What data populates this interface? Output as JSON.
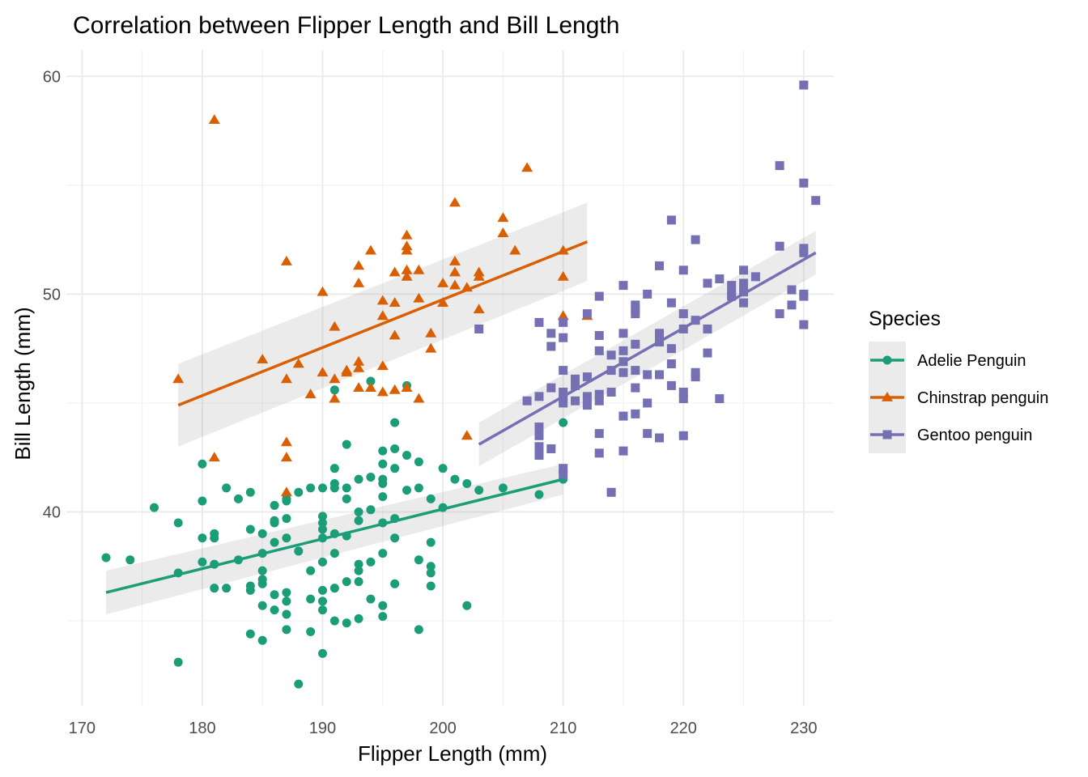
{
  "chart_data": {
    "type": "scatter",
    "title": "Correlation between Flipper Length and Bill Length",
    "xlabel": "Flipper Length (mm)",
    "ylabel": "Bill Length (mm)",
    "xlim": [
      168.7,
      232.5
    ],
    "ylim": [
      31.1,
      61.2
    ],
    "x_ticks": [
      170,
      180,
      190,
      200,
      210,
      220,
      230
    ],
    "y_ticks": [
      40,
      50,
      60
    ],
    "grid": true,
    "legend": {
      "title": "Species",
      "position": "right"
    },
    "series": [
      {
        "name": "Adelie Penguin",
        "color": "#1b9e77",
        "marker": "circle",
        "fit": {
          "x": [
            172,
            210
          ],
          "y": [
            36.3,
            41.5
          ],
          "band": [
            1.0,
            0.7
          ]
        },
        "points": [
          [
            172,
            37.9
          ],
          [
            174,
            37.8
          ],
          [
            176,
            40.2
          ],
          [
            178,
            33.1
          ],
          [
            178,
            37.2
          ],
          [
            178,
            39.5
          ],
          [
            180,
            37.7
          ],
          [
            180,
            38.8
          ],
          [
            180,
            40.5
          ],
          [
            180,
            42.2
          ],
          [
            181,
            37.6
          ],
          [
            181,
            38.8
          ],
          [
            181,
            39.0
          ],
          [
            181,
            36.5
          ],
          [
            182,
            41.1
          ],
          [
            182,
            36.5
          ],
          [
            183,
            37.8
          ],
          [
            183,
            40.6
          ],
          [
            184,
            36.6
          ],
          [
            184,
            36.4
          ],
          [
            184,
            34.4
          ],
          [
            184,
            39.2
          ],
          [
            184,
            40.9
          ],
          [
            185,
            34.1
          ],
          [
            185,
            35.7
          ],
          [
            185,
            36.7
          ],
          [
            185,
            36.9
          ],
          [
            185,
            37.3
          ],
          [
            185,
            38.1
          ],
          [
            185,
            39.0
          ],
          [
            186,
            35.5
          ],
          [
            186,
            36.2
          ],
          [
            186,
            38.6
          ],
          [
            186,
            39.5
          ],
          [
            186,
            39.6
          ],
          [
            186,
            40.3
          ],
          [
            187,
            34.6
          ],
          [
            187,
            35.3
          ],
          [
            187,
            35.9
          ],
          [
            187,
            36.3
          ],
          [
            187,
            38.8
          ],
          [
            187,
            39.7
          ],
          [
            187,
            40.5
          ],
          [
            187,
            40.6
          ],
          [
            188,
            32.1
          ],
          [
            188,
            38.2
          ],
          [
            188,
            40.9
          ],
          [
            189,
            34.5
          ],
          [
            189,
            36.0
          ],
          [
            189,
            37.3
          ],
          [
            189,
            41.1
          ],
          [
            190,
            33.5
          ],
          [
            190,
            35.5
          ],
          [
            190,
            36.4
          ],
          [
            190,
            37.7
          ],
          [
            190,
            38.8
          ],
          [
            190,
            39.2
          ],
          [
            190,
            39.8
          ],
          [
            190,
            41.1
          ],
          [
            190,
            35.9
          ],
          [
            190,
            39.5
          ],
          [
            191,
            35.0
          ],
          [
            191,
            36.5
          ],
          [
            191,
            38.1
          ],
          [
            191,
            39.0
          ],
          [
            191,
            41.1
          ],
          [
            191,
            41.3
          ],
          [
            191,
            42.0
          ],
          [
            191,
            45.6
          ],
          [
            192,
            34.9
          ],
          [
            192,
            36.8
          ],
          [
            192,
            38.9
          ],
          [
            192,
            40.6
          ],
          [
            192,
            43.1
          ],
          [
            192,
            41.1
          ],
          [
            193,
            35.1
          ],
          [
            193,
            36.8
          ],
          [
            193,
            37.6
          ],
          [
            193,
            39.6
          ],
          [
            193,
            40.0
          ],
          [
            193,
            41.5
          ],
          [
            193,
            37.3
          ],
          [
            194,
            36.0
          ],
          [
            194,
            37.7
          ],
          [
            194,
            40.1
          ],
          [
            194,
            41.6
          ],
          [
            194,
            46.0
          ],
          [
            195,
            35.2
          ],
          [
            195,
            35.7
          ],
          [
            195,
            38.1
          ],
          [
            195,
            39.5
          ],
          [
            195,
            40.7
          ],
          [
            195,
            41.3
          ],
          [
            195,
            42.2
          ],
          [
            195,
            42.8
          ],
          [
            195,
            41.5
          ],
          [
            196,
            36.7
          ],
          [
            196,
            38.8
          ],
          [
            196,
            39.7
          ],
          [
            196,
            42.0
          ],
          [
            196,
            42.9
          ],
          [
            196,
            44.1
          ],
          [
            197,
            41.0
          ],
          [
            197,
            42.6
          ],
          [
            197,
            45.8
          ],
          [
            198,
            34.6
          ],
          [
            198,
            37.8
          ],
          [
            198,
            41.1
          ],
          [
            198,
            42.3
          ],
          [
            199,
            36.6
          ],
          [
            199,
            37.2
          ],
          [
            199,
            37.5
          ],
          [
            199,
            38.6
          ],
          [
            199,
            40.6
          ],
          [
            200,
            40.2
          ],
          [
            200,
            42.0
          ],
          [
            201,
            41.5
          ],
          [
            202,
            35.7
          ],
          [
            202,
            41.3
          ],
          [
            203,
            41.0
          ],
          [
            205,
            41.1
          ],
          [
            208,
            40.8
          ],
          [
            210,
            44.1
          ],
          [
            210,
            41.8
          ],
          [
            210,
            41.5
          ]
        ]
      },
      {
        "name": "Chinstrap penguin",
        "color": "#d95f02",
        "marker": "triangle",
        "fit": {
          "x": [
            178,
            212
          ],
          "y": [
            44.9,
            52.4
          ],
          "band": [
            1.9,
            1.8
          ]
        },
        "points": [
          [
            178,
            46.1
          ],
          [
            181,
            58.0
          ],
          [
            181,
            42.5
          ],
          [
            185,
            47.0
          ],
          [
            187,
            51.5
          ],
          [
            187,
            46.1
          ],
          [
            187,
            43.2
          ],
          [
            187,
            42.5
          ],
          [
            187,
            40.9
          ],
          [
            188,
            46.8
          ],
          [
            189,
            45.4
          ],
          [
            190,
            50.1
          ],
          [
            190,
            46.4
          ],
          [
            191,
            48.5
          ],
          [
            191,
            45.2
          ],
          [
            191,
            46.1
          ],
          [
            192,
            46.5
          ],
          [
            192,
            46.4
          ],
          [
            193,
            46.9
          ],
          [
            193,
            46.6
          ],
          [
            193,
            45.7
          ],
          [
            193,
            51.3
          ],
          [
            193,
            50.5
          ],
          [
            194,
            45.7
          ],
          [
            194,
            52.0
          ],
          [
            195,
            46.7
          ],
          [
            195,
            45.5
          ],
          [
            195,
            49.7
          ],
          [
            195,
            49.0
          ],
          [
            196,
            51.0
          ],
          [
            196,
            49.6
          ],
          [
            196,
            48.1
          ],
          [
            196,
            45.6
          ],
          [
            197,
            50.8
          ],
          [
            197,
            52.2
          ],
          [
            197,
            52.0
          ],
          [
            197,
            52.7
          ],
          [
            197,
            45.7
          ],
          [
            197,
            51.1
          ],
          [
            198,
            45.2
          ],
          [
            198,
            49.8
          ],
          [
            198,
            51.1
          ],
          [
            199,
            47.5
          ],
          [
            199,
            48.2
          ],
          [
            200,
            49.6
          ],
          [
            200,
            50.5
          ],
          [
            201,
            54.2
          ],
          [
            201,
            50.4
          ],
          [
            201,
            51.0
          ],
          [
            201,
            51.5
          ],
          [
            202,
            50.3
          ],
          [
            202,
            43.5
          ],
          [
            203,
            50.8
          ],
          [
            203,
            49.3
          ],
          [
            203,
            51.0
          ],
          [
            205,
            53.5
          ],
          [
            205,
            52.8
          ],
          [
            206,
            52.0
          ],
          [
            207,
            55.8
          ],
          [
            210,
            52.0
          ],
          [
            210,
            50.8
          ],
          [
            210,
            49.0
          ],
          [
            212,
            49.0
          ]
        ]
      },
      {
        "name": "Gentoo penguin",
        "color": "#7570b3",
        "marker": "square",
        "fit": {
          "x": [
            203,
            231
          ],
          "y": [
            43.1,
            51.9
          ],
          "band": [
            1.0,
            1.0
          ]
        },
        "points": [
          [
            203,
            48.4
          ],
          [
            207,
            45.1
          ],
          [
            208,
            48.7
          ],
          [
            208,
            45.3
          ],
          [
            208,
            43.5
          ],
          [
            208,
            43.0
          ],
          [
            208,
            42.6
          ],
          [
            208,
            43.9
          ],
          [
            209,
            47.6
          ],
          [
            209,
            48.2
          ],
          [
            209,
            45.7
          ],
          [
            209,
            42.9
          ],
          [
            210,
            48.7
          ],
          [
            210,
            48.0
          ],
          [
            210,
            46.5
          ],
          [
            210,
            45.2
          ],
          [
            210,
            45.0
          ],
          [
            210,
            42.0
          ],
          [
            210,
            45.5
          ],
          [
            210,
            41.7
          ],
          [
            211,
            46.1
          ],
          [
            211,
            45.8
          ],
          [
            211,
            45.1
          ],
          [
            212,
            49.1
          ],
          [
            212,
            46.2
          ],
          [
            212,
            45.3
          ],
          [
            212,
            44.9
          ],
          [
            213,
            49.9
          ],
          [
            213,
            48.1
          ],
          [
            213,
            47.4
          ],
          [
            213,
            45.4
          ],
          [
            213,
            45.1
          ],
          [
            213,
            43.6
          ],
          [
            213,
            42.7
          ],
          [
            214,
            47.2
          ],
          [
            214,
            46.5
          ],
          [
            214,
            45.5
          ],
          [
            214,
            40.9
          ],
          [
            215,
            48.2
          ],
          [
            215,
            47.4
          ],
          [
            215,
            46.9
          ],
          [
            215,
            46.4
          ],
          [
            215,
            44.4
          ],
          [
            215,
            42.8
          ],
          [
            215,
            50.4
          ],
          [
            216,
            49.5
          ],
          [
            216,
            49.1
          ],
          [
            216,
            47.7
          ],
          [
            216,
            46.5
          ],
          [
            216,
            45.7
          ],
          [
            216,
            44.5
          ],
          [
            216,
            49.3
          ],
          [
            217,
            46.3
          ],
          [
            217,
            45.0
          ],
          [
            217,
            43.6
          ],
          [
            217,
            50.0
          ],
          [
            218,
            51.3
          ],
          [
            218,
            48.2
          ],
          [
            218,
            47.8
          ],
          [
            218,
            46.3
          ],
          [
            218,
            43.4
          ],
          [
            219,
            53.4
          ],
          [
            219,
            49.6
          ],
          [
            219,
            47.5
          ],
          [
            219,
            46.8
          ],
          [
            219,
            45.8
          ],
          [
            220,
            51.1
          ],
          [
            220,
            49.1
          ],
          [
            220,
            48.4
          ],
          [
            220,
            45.5
          ],
          [
            220,
            45.2
          ],
          [
            220,
            43.5
          ],
          [
            221,
            52.5
          ],
          [
            221,
            48.8
          ],
          [
            221,
            46.4
          ],
          [
            221,
            46.2
          ],
          [
            222,
            48.4
          ],
          [
            222,
            47.3
          ],
          [
            222,
            50.5
          ],
          [
            223,
            50.7
          ],
          [
            223,
            45.2
          ],
          [
            224,
            50.4
          ],
          [
            224,
            49.9
          ],
          [
            224,
            50.0
          ],
          [
            225,
            51.1
          ],
          [
            225,
            50.5
          ],
          [
            225,
            50.1
          ],
          [
            225,
            49.6
          ],
          [
            226,
            50.8
          ],
          [
            228,
            55.9
          ],
          [
            228,
            52.2
          ],
          [
            228,
            49.1
          ],
          [
            229,
            50.2
          ],
          [
            229,
            49.5
          ],
          [
            230,
            59.6
          ],
          [
            230,
            55.1
          ],
          [
            230,
            52.1
          ],
          [
            230,
            50.0
          ],
          [
            230,
            49.9
          ],
          [
            230,
            48.6
          ],
          [
            230,
            51.9
          ],
          [
            231,
            54.3
          ]
        ]
      }
    ]
  }
}
